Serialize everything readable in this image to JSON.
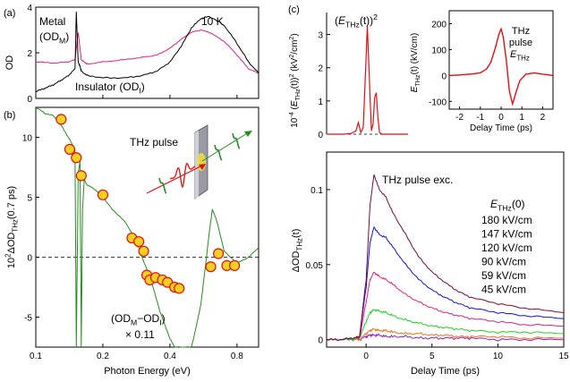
{
  "colors": {
    "black": "#000000",
    "magenta": "#e0207f",
    "green": "#2a8a22",
    "red": "#e01010",
    "marker_fill": "#f5d020",
    "marker_edge": "#e01010",
    "dark_red": "#7a0a3a",
    "blue": "#1010e0",
    "bright_green": "#20d020",
    "orange": "#f07010",
    "purple": "#8a20c0"
  },
  "chart_data": [
    {
      "id": "a",
      "type": "line",
      "panel_label": "(a)",
      "ylabel": "OD",
      "xlabel": "",
      "annotation": "10 K",
      "yticks": [
        "0",
        "2",
        "4"
      ],
      "ylim": [
        0,
        4
      ],
      "xlim": [
        0.1,
        1.0
      ],
      "xscale": "log",
      "legend": {
        "metal": "Metal",
        "metal_sub": "(OD",
        "metal_sub2": "M",
        "metal_sub3": ")",
        "insulator": "Insulator (OD",
        "insulator_sub": "I",
        "insulator_end": ")"
      },
      "series": [
        {
          "name": "Metal (OD_M)",
          "color": "magenta",
          "x": [
            0.1,
            0.12,
            0.14,
            0.15,
            0.155,
            0.16,
            0.165,
            0.17,
            0.2,
            0.25,
            0.3,
            0.35,
            0.4,
            0.45,
            0.5,
            0.55,
            0.6,
            0.7,
            0.8,
            0.9,
            1.0
          ],
          "y": [
            1.6,
            1.55,
            1.6,
            1.7,
            2.9,
            1.7,
            1.6,
            1.5,
            1.6,
            1.7,
            1.8,
            1.9,
            2.2,
            2.6,
            2.9,
            3.0,
            2.9,
            2.5,
            1.9,
            1.3,
            1.1
          ]
        },
        {
          "name": "Insulator (OD_I)",
          "color": "black",
          "x": [
            0.1,
            0.11,
            0.12,
            0.13,
            0.14,
            0.15,
            0.152,
            0.155,
            0.158,
            0.16,
            0.17,
            0.2,
            0.25,
            0.3,
            0.35,
            0.4,
            0.45,
            0.5,
            0.55,
            0.6,
            0.7,
            0.8,
            0.9,
            1.0
          ],
          "y": [
            0.3,
            0.45,
            0.6,
            0.8,
            1.0,
            1.3,
            3.8,
            1.6,
            1.4,
            1.2,
            1.0,
            0.9,
            0.9,
            1.0,
            1.2,
            1.6,
            2.3,
            3.1,
            3.5,
            3.6,
            3.2,
            2.4,
            1.6,
            1.1
          ]
        }
      ]
    },
    {
      "id": "b",
      "type": "scatter",
      "panel_label": "(b)",
      "ylabel": "10²ΔOD_THz(0.7 ps)",
      "ylabel_parts": [
        "10",
        "2",
        "ΔOD",
        "THz",
        "(0.7 ps)"
      ],
      "xlabel": "Photon Energy (eV)",
      "xticks": [
        "0.1",
        "0.2",
        "0.4",
        "0.8"
      ],
      "yticks": [
        "10",
        "5",
        "0",
        "-5"
      ],
      "ylim": [
        -7.5,
        12.5
      ],
      "xlim": [
        0.1,
        1.0
      ],
      "xscale": "log",
      "inset_label": "THz pulse",
      "curve_label": "(OD_M−OD_I)",
      "curve_label_parts": [
        "(OD",
        "M",
        "−OD",
        "I",
        ")"
      ],
      "scale_label": "× 0.11",
      "points": {
        "x": [
          0.13,
          0.142,
          0.152,
          0.16,
          0.2,
          0.27,
          0.29,
          0.305,
          0.315,
          0.325,
          0.345,
          0.37,
          0.39,
          0.42,
          0.44,
          0.61,
          0.66,
          0.72,
          0.78
        ],
        "y": [
          11.5,
          9.0,
          8.3,
          6.8,
          5.2,
          1.6,
          1.3,
          0.5,
          -1.5,
          -1.9,
          -1.7,
          -1.9,
          -2.1,
          -2.5,
          -2.6,
          -0.8,
          0.3,
          -0.7,
          -0.7
        ]
      },
      "curve": {
        "x": [
          0.1,
          0.11,
          0.12,
          0.13,
          0.14,
          0.145,
          0.15,
          0.152,
          0.155,
          0.158,
          0.16,
          0.162,
          0.165,
          0.17,
          0.18,
          0.2,
          0.22,
          0.25,
          0.28,
          0.3,
          0.33,
          0.36,
          0.4,
          0.42,
          0.45,
          0.5,
          0.55,
          0.6,
          0.62,
          0.65,
          0.7,
          0.8,
          0.9,
          1.0
        ],
        "y": [
          12.5,
          12.0,
          11.8,
          11.0,
          10.0,
          9.5,
          9.0,
          -7.5,
          7.0,
          8.0,
          -7.5,
          4.0,
          6.5,
          6.0,
          5.8,
          5.0,
          4.0,
          3.0,
          1.5,
          0.0,
          -2.0,
          -4.5,
          -6.8,
          -7.5,
          -7.5,
          -7.5,
          -4.0,
          2.0,
          4.0,
          3.0,
          0.5,
          -0.5,
          0.0,
          0.8
        ]
      }
    },
    {
      "id": "c_top",
      "type": "line",
      "panel_label": "(c)",
      "ylabel": "10⁻⁴ (E_THz(t))² (kV²/cm²)",
      "ylabel_parts": [
        "10",
        "-4",
        " (",
        "E",
        "THz",
        "(t))",
        "2",
        " (kV",
        "2",
        "/cm",
        "2",
        ")"
      ],
      "title": "(E_THz(t))²",
      "title_parts": [
        "(",
        "E",
        "THz",
        "(t))",
        "2"
      ],
      "yticks": [
        "0",
        "1",
        "2",
        "3"
      ],
      "ylim": [
        0,
        3.5
      ],
      "xlim": [
        -2.5,
        2.5
      ],
      "series": [
        {
          "name": "(E_THz(t))^2",
          "color": "red",
          "x": [
            -2.5,
            -1.5,
            -1.0,
            -0.7,
            -0.55,
            -0.4,
            -0.25,
            -0.1,
            0.0,
            0.1,
            0.25,
            0.35,
            0.45,
            0.55,
            0.65,
            0.75,
            0.9,
            1.2,
            2.5
          ],
          "y": [
            0,
            0,
            0.02,
            0.1,
            0.35,
            0.05,
            0.2,
            2.0,
            3.25,
            2.0,
            0.1,
            0.3,
            1.1,
            1.25,
            0.5,
            0.05,
            0.0,
            0.0,
            0
          ]
        }
      ]
    },
    {
      "id": "c_inset",
      "type": "line",
      "title": "THz pulse",
      "title_lines": [
        "THz",
        "pulse"
      ],
      "title_sym_parts": [
        "E",
        "THz"
      ],
      "ylabel": "E_THz(t) (kV/cm)",
      "ylabel_parts": [
        "E",
        "THz",
        "(t) (kV/cm)"
      ],
      "xlabel": "Delay Time (ps)",
      "xticks": [
        "-2",
        "-1",
        "0",
        "1",
        "2"
      ],
      "yticks": [
        "200",
        "100",
        "0",
        "-100"
      ],
      "ylim": [
        -130,
        250
      ],
      "xlim": [
        -2.5,
        2.5
      ],
      "series": [
        {
          "name": "E_THz(t)",
          "color": "red",
          "x": [
            -2.5,
            -2.0,
            -1.5,
            -1.0,
            -0.7,
            -0.5,
            -0.3,
            -0.1,
            0.0,
            0.1,
            0.25,
            0.4,
            0.55,
            0.7,
            0.9,
            1.2,
            1.6,
            2.0,
            2.5
          ],
          "y": [
            0,
            2,
            5,
            10,
            25,
            50,
            100,
            160,
            180,
            150,
            60,
            -60,
            -110,
            -70,
            -20,
            5,
            10,
            5,
            0
          ]
        }
      ]
    },
    {
      "id": "c_bottom",
      "type": "line",
      "ylabel": "ΔOD_THz(t)",
      "ylabel_parts": [
        "ΔOD",
        "THz",
        "(t)"
      ],
      "xlabel": "Delay Time (ps)",
      "title": "THz pulse exc.",
      "xticks": [
        "0",
        "5",
        "10",
        "15"
      ],
      "yticks": [
        "0.1",
        "0.05",
        "0"
      ],
      "ylim": [
        -0.005,
        0.125
      ],
      "xlim": [
        -3,
        15
      ],
      "legend_title_parts": [
        "E",
        "THz",
        "(0)"
      ],
      "legend": [
        "180 kV/cm",
        "147 kV/cm",
        "120 kV/cm",
        "90 kV/cm",
        "59 kV/cm",
        "45 kV/cm"
      ],
      "x": [
        -3,
        -2,
        -1,
        -0.5,
        0,
        0.3,
        0.6,
        1,
        1.5,
        2,
        3,
        4,
        5,
        6,
        7,
        8,
        10,
        12,
        15
      ],
      "series": [
        {
          "name": "180 kV/cm",
          "color": "dark_red",
          "y": [
            0,
            0,
            0.001,
            0.002,
            0.04,
            0.09,
            0.11,
            0.1,
            0.095,
            0.085,
            0.07,
            0.055,
            0.045,
            0.038,
            0.032,
            0.028,
            0.024,
            0.021,
            0.018
          ]
        },
        {
          "name": "147 kV/cm",
          "color": "blue",
          "y": [
            0,
            0,
            0.001,
            0.002,
            0.035,
            0.065,
            0.075,
            0.07,
            0.068,
            0.062,
            0.05,
            0.04,
            0.033,
            0.028,
            0.024,
            0.021,
            0.018,
            0.016,
            0.014
          ]
        },
        {
          "name": "120 kV/cm",
          "color": "magenta",
          "y": [
            0,
            0,
            0.001,
            0.001,
            0.025,
            0.04,
            0.045,
            0.042,
            0.04,
            0.037,
            0.03,
            0.025,
            0.021,
            0.018,
            0.016,
            0.014,
            0.012,
            0.01,
            0.009
          ]
        },
        {
          "name": "90 kV/cm",
          "color": "bright_green",
          "y": [
            0,
            0,
            0,
            0.001,
            0.012,
            0.018,
            0.02,
            0.019,
            0.018,
            0.016,
            0.013,
            0.011,
            0.009,
            0.008,
            0.007,
            0.006,
            0.005,
            0.005,
            0.004
          ]
        },
        {
          "name": "59 kV/cm",
          "color": "orange",
          "y": [
            0,
            0,
            0,
            0,
            0.004,
            0.006,
            0.007,
            0.006,
            0.006,
            0.005,
            0.004,
            0.004,
            0.003,
            0.003,
            0.002,
            0.002,
            0.002,
            0.001,
            0.001
          ]
        },
        {
          "name": "45 kV/cm",
          "color": "purple",
          "y": [
            0,
            0,
            0,
            0,
            0.002,
            0.003,
            0.003,
            0.003,
            0.002,
            0.002,
            0.002,
            0.001,
            0.001,
            0.001,
            0.001,
            0.001,
            0.0,
            0.0,
            0.0
          ]
        }
      ]
    }
  ]
}
